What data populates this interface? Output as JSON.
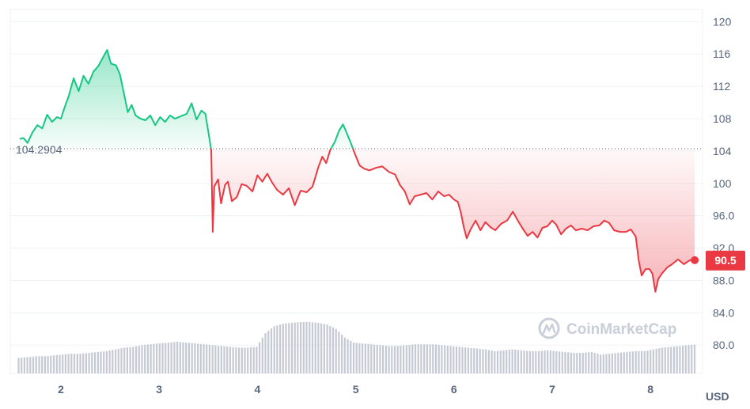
{
  "chart_data": {
    "type": "line",
    "currency": "USD",
    "reference_label": "104.2904",
    "reference_value": 104.2904,
    "current_label": "90.5",
    "current_value": 90.5,
    "ylim": [
      76.5,
      121.5
    ],
    "xlim": [
      1.5,
      8.5
    ],
    "y_ticks": [
      {
        "value": 120,
        "label": "120"
      },
      {
        "value": 116,
        "label": "116"
      },
      {
        "value": 112,
        "label": "112"
      },
      {
        "value": 108,
        "label": "108"
      },
      {
        "value": 104,
        "label": "104"
      },
      {
        "value": 100,
        "label": "100"
      },
      {
        "value": 96,
        "label": "96.0"
      },
      {
        "value": 92,
        "label": "92.0"
      },
      {
        "value": 88,
        "label": "88.0"
      },
      {
        "value": 84,
        "label": "84.0"
      },
      {
        "value": 80,
        "label": "80.0"
      }
    ],
    "x_ticks": [
      {
        "value": 2,
        "label": "2"
      },
      {
        "value": 3,
        "label": "3"
      },
      {
        "value": 4,
        "label": "4"
      },
      {
        "value": 5,
        "label": "5"
      },
      {
        "value": 6,
        "label": "6"
      },
      {
        "value": 7,
        "label": "7"
      },
      {
        "value": 8,
        "label": "8"
      }
    ],
    "price": [
      [
        1.58,
        105.5
      ],
      [
        1.62,
        105.6
      ],
      [
        1.66,
        105.0
      ],
      [
        1.71,
        106.3
      ],
      [
        1.76,
        107.2
      ],
      [
        1.81,
        106.8
      ],
      [
        1.86,
        108.5
      ],
      [
        1.91,
        107.6
      ],
      [
        1.96,
        108.2
      ],
      [
        2.0,
        108.0
      ],
      [
        2.04,
        109.5
      ],
      [
        2.08,
        110.8
      ],
      [
        2.13,
        113.0
      ],
      [
        2.18,
        111.4
      ],
      [
        2.23,
        113.3
      ],
      [
        2.28,
        112.3
      ],
      [
        2.33,
        113.8
      ],
      [
        2.38,
        114.5
      ],
      [
        2.42,
        115.4
      ],
      [
        2.47,
        116.5
      ],
      [
        2.51,
        114.8
      ],
      [
        2.56,
        114.6
      ],
      [
        2.6,
        113.5
      ],
      [
        2.64,
        111.2
      ],
      [
        2.68,
        108.8
      ],
      [
        2.72,
        109.7
      ],
      [
        2.76,
        108.4
      ],
      [
        2.81,
        108.0
      ],
      [
        2.86,
        107.8
      ],
      [
        2.91,
        108.4
      ],
      [
        2.96,
        107.2
      ],
      [
        3.01,
        108.2
      ],
      [
        3.06,
        107.6
      ],
      [
        3.11,
        108.4
      ],
      [
        3.16,
        108.0
      ],
      [
        3.22,
        108.3
      ],
      [
        3.28,
        108.6
      ],
      [
        3.33,
        109.9
      ],
      [
        3.38,
        107.9
      ],
      [
        3.43,
        109.0
      ],
      [
        3.47,
        108.6
      ],
      [
        3.5,
        106.4
      ],
      [
        3.53,
        104.1
      ],
      [
        3.545,
        94.0
      ],
      [
        3.56,
        99.6
      ],
      [
        3.6,
        100.5
      ],
      [
        3.63,
        97.5
      ],
      [
        3.67,
        99.8
      ],
      [
        3.7,
        100.2
      ],
      [
        3.74,
        97.8
      ],
      [
        3.79,
        98.3
      ],
      [
        3.84,
        99.9
      ],
      [
        3.89,
        99.7
      ],
      [
        3.95,
        99.0
      ],
      [
        4.0,
        101.0
      ],
      [
        4.05,
        100.2
      ],
      [
        4.1,
        101.2
      ],
      [
        4.15,
        100.1
      ],
      [
        4.2,
        99.2
      ],
      [
        4.26,
        98.6
      ],
      [
        4.32,
        99.4
      ],
      [
        4.38,
        97.3
      ],
      [
        4.44,
        99.1
      ],
      [
        4.5,
        98.9
      ],
      [
        4.56,
        99.6
      ],
      [
        4.62,
        102.0
      ],
      [
        4.66,
        103.3
      ],
      [
        4.7,
        102.5
      ],
      [
        4.74,
        104.1
      ],
      [
        4.79,
        105.2
      ],
      [
        4.83,
        106.5
      ],
      [
        4.87,
        107.3
      ],
      [
        4.91,
        106.2
      ],
      [
        4.95,
        105.0
      ],
      [
        4.99,
        103.7
      ],
      [
        5.04,
        102.2
      ],
      [
        5.09,
        101.8
      ],
      [
        5.14,
        101.6
      ],
      [
        5.2,
        101.9
      ],
      [
        5.27,
        102.1
      ],
      [
        5.34,
        101.4
      ],
      [
        5.4,
        101.1
      ],
      [
        5.45,
        99.8
      ],
      [
        5.5,
        99.0
      ],
      [
        5.55,
        97.4
      ],
      [
        5.6,
        98.4
      ],
      [
        5.66,
        98.6
      ],
      [
        5.72,
        98.8
      ],
      [
        5.78,
        98.0
      ],
      [
        5.84,
        99.0
      ],
      [
        5.9,
        98.4
      ],
      [
        5.95,
        98.6
      ],
      [
        6.0,
        98.0
      ],
      [
        6.04,
        97.7
      ],
      [
        6.07,
        96.4
      ],
      [
        6.1,
        94.6
      ],
      [
        6.13,
        93.2
      ],
      [
        6.17,
        94.3
      ],
      [
        6.22,
        95.4
      ],
      [
        6.27,
        94.2
      ],
      [
        6.32,
        95.2
      ],
      [
        6.37,
        94.6
      ],
      [
        6.42,
        94.2
      ],
      [
        6.48,
        95.0
      ],
      [
        6.54,
        95.4
      ],
      [
        6.6,
        96.5
      ],
      [
        6.65,
        95.4
      ],
      [
        6.7,
        94.4
      ],
      [
        6.75,
        93.5
      ],
      [
        6.8,
        94.0
      ],
      [
        6.85,
        93.3
      ],
      [
        6.9,
        94.5
      ],
      [
        6.95,
        94.7
      ],
      [
        7.0,
        95.4
      ],
      [
        7.04,
        94.9
      ],
      [
        7.09,
        93.7
      ],
      [
        7.14,
        94.4
      ],
      [
        7.19,
        94.8
      ],
      [
        7.24,
        94.2
      ],
      [
        7.3,
        94.4
      ],
      [
        7.36,
        94.2
      ],
      [
        7.42,
        94.7
      ],
      [
        7.48,
        94.8
      ],
      [
        7.53,
        95.4
      ],
      [
        7.58,
        95.1
      ],
      [
        7.63,
        94.2
      ],
      [
        7.69,
        94.0
      ],
      [
        7.75,
        94.0
      ],
      [
        7.8,
        94.3
      ],
      [
        7.85,
        93.4
      ],
      [
        7.88,
        90.5
      ],
      [
        7.91,
        88.6
      ],
      [
        7.95,
        89.4
      ],
      [
        7.99,
        89.4
      ],
      [
        8.02,
        88.8
      ],
      [
        8.05,
        86.6
      ],
      [
        8.08,
        88.2
      ],
      [
        8.12,
        88.9
      ],
      [
        8.17,
        89.6
      ],
      [
        8.22,
        90.0
      ],
      [
        8.28,
        90.6
      ],
      [
        8.34,
        90.0
      ],
      [
        8.4,
        90.5
      ],
      [
        8.45,
        90.5
      ]
    ],
    "volume": {
      "x_start": 1.56,
      "x_end": 8.47,
      "values": [
        18,
        19,
        20,
        20,
        21,
        22,
        23,
        23,
        24,
        25,
        26,
        28,
        30,
        31,
        33,
        34,
        35,
        36,
        37,
        36,
        35,
        34,
        33,
        32,
        31,
        30,
        30,
        31,
        47,
        55,
        58,
        59,
        60,
        60,
        59,
        57,
        52,
        42,
        36,
        35,
        34,
        33,
        32,
        32,
        33,
        34,
        34,
        34,
        33,
        32,
        31,
        30,
        29,
        28,
        26,
        27,
        28,
        27,
        26,
        26,
        27,
        26,
        25,
        24,
        24,
        25,
        22,
        23,
        24,
        25,
        26,
        26,
        28,
        30,
        31,
        32,
        33,
        34
      ]
    }
  },
  "watermark": {
    "text": "CoinMarketCap",
    "icon": "coinmarketcap-logo-icon"
  },
  "colors": {
    "up": "#16c784",
    "down": "#ea3943",
    "volume": "#c4c9d3",
    "grid": "#eff2f5",
    "text": "#58667e",
    "reference_line": "#5d6575"
  }
}
